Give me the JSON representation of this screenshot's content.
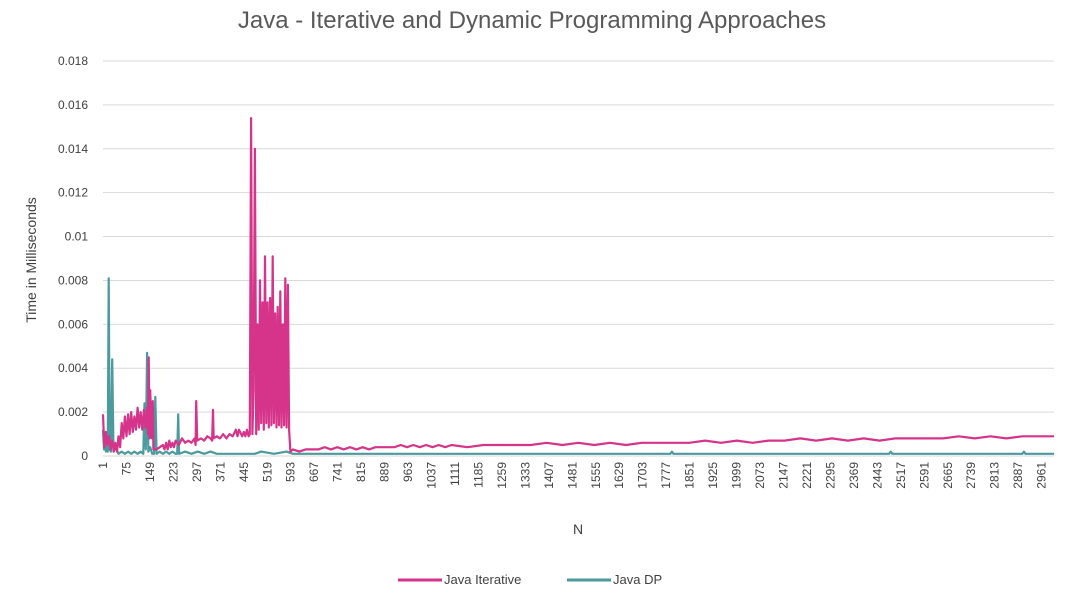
{
  "chart_data": {
    "type": "line",
    "title": "Java - Iterative and Dynamic Programming Approaches",
    "xlabel": "N",
    "ylabel": "Time in Milliseconds",
    "ylim": [
      0,
      0.018
    ],
    "xlim": [
      1,
      3000
    ],
    "y_ticks": [
      "0",
      "0.002",
      "0.004",
      "0.006",
      "0.008",
      "0.01",
      "0.012",
      "0.014",
      "0.016",
      "0.018"
    ],
    "x_ticks": [
      "1",
      "75",
      "149",
      "223",
      "297",
      "371",
      "445",
      "519",
      "593",
      "667",
      "741",
      "815",
      "889",
      "963",
      "1037",
      "1111",
      "1185",
      "1259",
      "1333",
      "1407",
      "1481",
      "1555",
      "1629",
      "1703",
      "1777",
      "1851",
      "1925",
      "1999",
      "2073",
      "2147",
      "2221",
      "2295",
      "2369",
      "2443",
      "2517",
      "2591",
      "2665",
      "2739",
      "2813",
      "2887",
      "2961"
    ],
    "grid": true,
    "legend": "bottom",
    "series": [
      {
        "name": "Java Iterative",
        "color": "#D6338A",
        "values": [
          [
            1,
            0.0019
          ],
          [
            5,
            0.0004
          ],
          [
            10,
            0.0011
          ],
          [
            15,
            0.0005
          ],
          [
            20,
            0.0009
          ],
          [
            25,
            0.0003
          ],
          [
            30,
            0.0007
          ],
          [
            35,
            0.0002
          ],
          [
            40,
            0.0006
          ],
          [
            45,
            0.0002
          ],
          [
            50,
            0.0009
          ],
          [
            55,
            0.0004
          ],
          [
            60,
            0.0015
          ],
          [
            65,
            0.0008
          ],
          [
            70,
            0.0018
          ],
          [
            75,
            0.0009
          ],
          [
            80,
            0.0019
          ],
          [
            85,
            0.001
          ],
          [
            90,
            0.002
          ],
          [
            95,
            0.0011
          ],
          [
            100,
            0.0018
          ],
          [
            105,
            0.0012
          ],
          [
            110,
            0.0022
          ],
          [
            115,
            0.0013
          ],
          [
            120,
            0.002
          ],
          [
            125,
            0.0012
          ],
          [
            130,
            0.0021
          ],
          [
            135,
            0.0013
          ],
          [
            140,
            0.0022
          ],
          [
            143,
            0.001
          ],
          [
            145,
            0.0045
          ],
          [
            148,
            0.0008
          ],
          [
            150,
            0.003
          ],
          [
            155,
            0.0008
          ],
          [
            158,
            0.0025
          ],
          [
            160,
            0.0003
          ],
          [
            170,
            0.0003
          ],
          [
            180,
            0.0004
          ],
          [
            190,
            0.0005
          ],
          [
            195,
            0.0003
          ],
          [
            200,
            0.0006
          ],
          [
            205,
            0.0003
          ],
          [
            210,
            0.0007
          ],
          [
            215,
            0.0004
          ],
          [
            220,
            0.0006
          ],
          [
            225,
            0.0004
          ],
          [
            230,
            0.0007
          ],
          [
            240,
            0.0005
          ],
          [
            250,
            0.0008
          ],
          [
            260,
            0.0006
          ],
          [
            270,
            0.0007
          ],
          [
            280,
            0.0006
          ],
          [
            290,
            0.0008
          ],
          [
            293,
            0.0005
          ],
          [
            295,
            0.0025
          ],
          [
            298,
            0.0007
          ],
          [
            310,
            0.0008
          ],
          [
            320,
            0.0007
          ],
          [
            330,
            0.0009
          ],
          [
            340,
            0.0008
          ],
          [
            345,
            0.0007
          ],
          [
            348,
            0.0021
          ],
          [
            350,
            0.0008
          ],
          [
            360,
            0.0009
          ],
          [
            370,
            0.0008
          ],
          [
            380,
            0.001
          ],
          [
            390,
            0.0008
          ],
          [
            400,
            0.001
          ],
          [
            410,
            0.0009
          ],
          [
            420,
            0.0012
          ],
          [
            425,
            0.0009
          ],
          [
            430,
            0.0012
          ],
          [
            440,
            0.0009
          ],
          [
            445,
            0.0011
          ],
          [
            450,
            0.0009
          ],
          [
            455,
            0.0012
          ],
          [
            460,
            0.0009
          ],
          [
            464,
            0.001
          ],
          [
            468,
            0.0154
          ],
          [
            472,
            0.001
          ],
          [
            476,
            0.003
          ],
          [
            480,
            0.014
          ],
          [
            484,
            0.001
          ],
          [
            488,
            0.006
          ],
          [
            492,
            0.0012
          ],
          [
            496,
            0.008
          ],
          [
            500,
            0.0015
          ],
          [
            504,
            0.007
          ],
          [
            508,
            0.0012
          ],
          [
            512,
            0.0091
          ],
          [
            516,
            0.0015
          ],
          [
            520,
            0.007
          ],
          [
            524,
            0.0013
          ],
          [
            528,
            0.0072
          ],
          [
            532,
            0.0014
          ],
          [
            536,
            0.0091
          ],
          [
            540,
            0.0015
          ],
          [
            544,
            0.0065
          ],
          [
            548,
            0.0013
          ],
          [
            552,
            0.0068
          ],
          [
            556,
            0.0014
          ],
          [
            560,
            0.0075
          ],
          [
            564,
            0.0013
          ],
          [
            568,
            0.006
          ],
          [
            572,
            0.0014
          ],
          [
            576,
            0.0081
          ],
          [
            580,
            0.0013
          ],
          [
            584,
            0.0078
          ],
          [
            588,
            0.0012
          ],
          [
            592,
            0.0002
          ],
          [
            600,
            0.0003
          ],
          [
            620,
            0.0002
          ],
          [
            640,
            0.0003
          ],
          [
            660,
            0.0003
          ],
          [
            680,
            0.0003
          ],
          [
            700,
            0.0004
          ],
          [
            720,
            0.0003
          ],
          [
            740,
            0.0004
          ],
          [
            760,
            0.0003
          ],
          [
            780,
            0.0004
          ],
          [
            800,
            0.0003
          ],
          [
            820,
            0.0004
          ],
          [
            840,
            0.0003
          ],
          [
            860,
            0.0004
          ],
          [
            880,
            0.0004
          ],
          [
            900,
            0.0004
          ],
          [
            920,
            0.0004
          ],
          [
            940,
            0.0005
          ],
          [
            960,
            0.0004
          ],
          [
            980,
            0.0005
          ],
          [
            1000,
            0.0004
          ],
          [
            1020,
            0.0005
          ],
          [
            1040,
            0.0004
          ],
          [
            1060,
            0.0005
          ],
          [
            1080,
            0.0004
          ],
          [
            1100,
            0.0005
          ],
          [
            1150,
            0.0004
          ],
          [
            1200,
            0.0005
          ],
          [
            1250,
            0.0005
          ],
          [
            1300,
            0.0005
          ],
          [
            1350,
            0.0005
          ],
          [
            1400,
            0.0006
          ],
          [
            1450,
            0.0005
          ],
          [
            1500,
            0.0006
          ],
          [
            1550,
            0.0005
          ],
          [
            1600,
            0.0006
          ],
          [
            1650,
            0.0005
          ],
          [
            1700,
            0.0006
          ],
          [
            1750,
            0.0006
          ],
          [
            1800,
            0.0006
          ],
          [
            1850,
            0.0006
          ],
          [
            1900,
            0.0007
          ],
          [
            1950,
            0.0006
          ],
          [
            2000,
            0.0007
          ],
          [
            2050,
            0.0006
          ],
          [
            2100,
            0.0007
          ],
          [
            2150,
            0.0007
          ],
          [
            2200,
            0.0008
          ],
          [
            2250,
            0.0007
          ],
          [
            2300,
            0.0008
          ],
          [
            2350,
            0.0007
          ],
          [
            2400,
            0.0008
          ],
          [
            2450,
            0.0007
          ],
          [
            2500,
            0.0008
          ],
          [
            2550,
            0.0008
          ],
          [
            2600,
            0.0008
          ],
          [
            2650,
            0.0008
          ],
          [
            2700,
            0.0009
          ],
          [
            2750,
            0.0008
          ],
          [
            2800,
            0.0009
          ],
          [
            2850,
            0.0008
          ],
          [
            2900,
            0.0009
          ],
          [
            2950,
            0.0009
          ],
          [
            3000,
            0.0009
          ]
        ]
      },
      {
        "name": "Java DP",
        "color": "#4A9A9E",
        "values": [
          [
            1,
            0.0012
          ],
          [
            4,
            0.0003
          ],
          [
            7,
            0.001
          ],
          [
            10,
            0.0002
          ],
          [
            13,
            0.0009
          ],
          [
            16,
            0.0002
          ],
          [
            19,
            0.0081
          ],
          [
            22,
            0.0003
          ],
          [
            26,
            0.0002
          ],
          [
            30,
            0.0044
          ],
          [
            34,
            0.0002
          ],
          [
            40,
            0.0004
          ],
          [
            50,
            0.0001
          ],
          [
            60,
            0.0002
          ],
          [
            70,
            0.0001
          ],
          [
            80,
            0.0002
          ],
          [
            90,
            0.0001
          ],
          [
            100,
            0.0002
          ],
          [
            110,
            0.0001
          ],
          [
            120,
            0.0002
          ],
          [
            128,
            0.0001
          ],
          [
            132,
            0.0024
          ],
          [
            136,
            0.0003
          ],
          [
            140,
            0.0047
          ],
          [
            144,
            0.0002
          ],
          [
            150,
            0.0004
          ],
          [
            156,
            0.0001
          ],
          [
            162,
            0.0001
          ],
          [
            166,
            0.0027
          ],
          [
            170,
            0.0001
          ],
          [
            180,
            0.0002
          ],
          [
            190,
            0.0001
          ],
          [
            200,
            0.0002
          ],
          [
            210,
            0.0001
          ],
          [
            220,
            0.0002
          ],
          [
            230,
            0.0001
          ],
          [
            235,
            0.0001
          ],
          [
            238,
            0.0019
          ],
          [
            241,
            0.0001
          ],
          [
            260,
            0.0002
          ],
          [
            280,
            0.0001
          ],
          [
            300,
            0.0002
          ],
          [
            320,
            0.0001
          ],
          [
            340,
            0.0002
          ],
          [
            360,
            0.0001
          ],
          [
            380,
            0.0001
          ],
          [
            400,
            0.0001
          ],
          [
            420,
            0.0001
          ],
          [
            440,
            0.0001
          ],
          [
            460,
            0.0001
          ],
          [
            480,
            0.0001
          ],
          [
            500,
            0.0002
          ],
          [
            540,
            0.0001
          ],
          [
            580,
            0.0002
          ],
          [
            600,
            0.0001
          ],
          [
            650,
            0.0001
          ],
          [
            700,
            0.0001
          ],
          [
            750,
            0.0001
          ],
          [
            800,
            0.0001
          ],
          [
            850,
            0.0001
          ],
          [
            900,
            0.0001
          ],
          [
            950,
            0.0001
          ],
          [
            1000,
            0.0001
          ],
          [
            1100,
            0.0001
          ],
          [
            1200,
            0.0001
          ],
          [
            1300,
            0.0001
          ],
          [
            1400,
            0.0001
          ],
          [
            1500,
            0.0001
          ],
          [
            1600,
            0.0001
          ],
          [
            1700,
            0.0001
          ],
          [
            1790,
            0.0001
          ],
          [
            1795,
            0.0002
          ],
          [
            1800,
            0.0001
          ],
          [
            1900,
            0.0001
          ],
          [
            2000,
            0.0001
          ],
          [
            2100,
            0.0001
          ],
          [
            2200,
            0.0001
          ],
          [
            2300,
            0.0001
          ],
          [
            2400,
            0.0001
          ],
          [
            2480,
            0.0001
          ],
          [
            2485,
            0.0002
          ],
          [
            2490,
            0.0001
          ],
          [
            2600,
            0.0001
          ],
          [
            2700,
            0.0001
          ],
          [
            2800,
            0.0001
          ],
          [
            2900,
            0.0001
          ],
          [
            2905,
            0.0002
          ],
          [
            2910,
            0.0001
          ],
          [
            3000,
            0.0001
          ]
        ]
      }
    ]
  }
}
